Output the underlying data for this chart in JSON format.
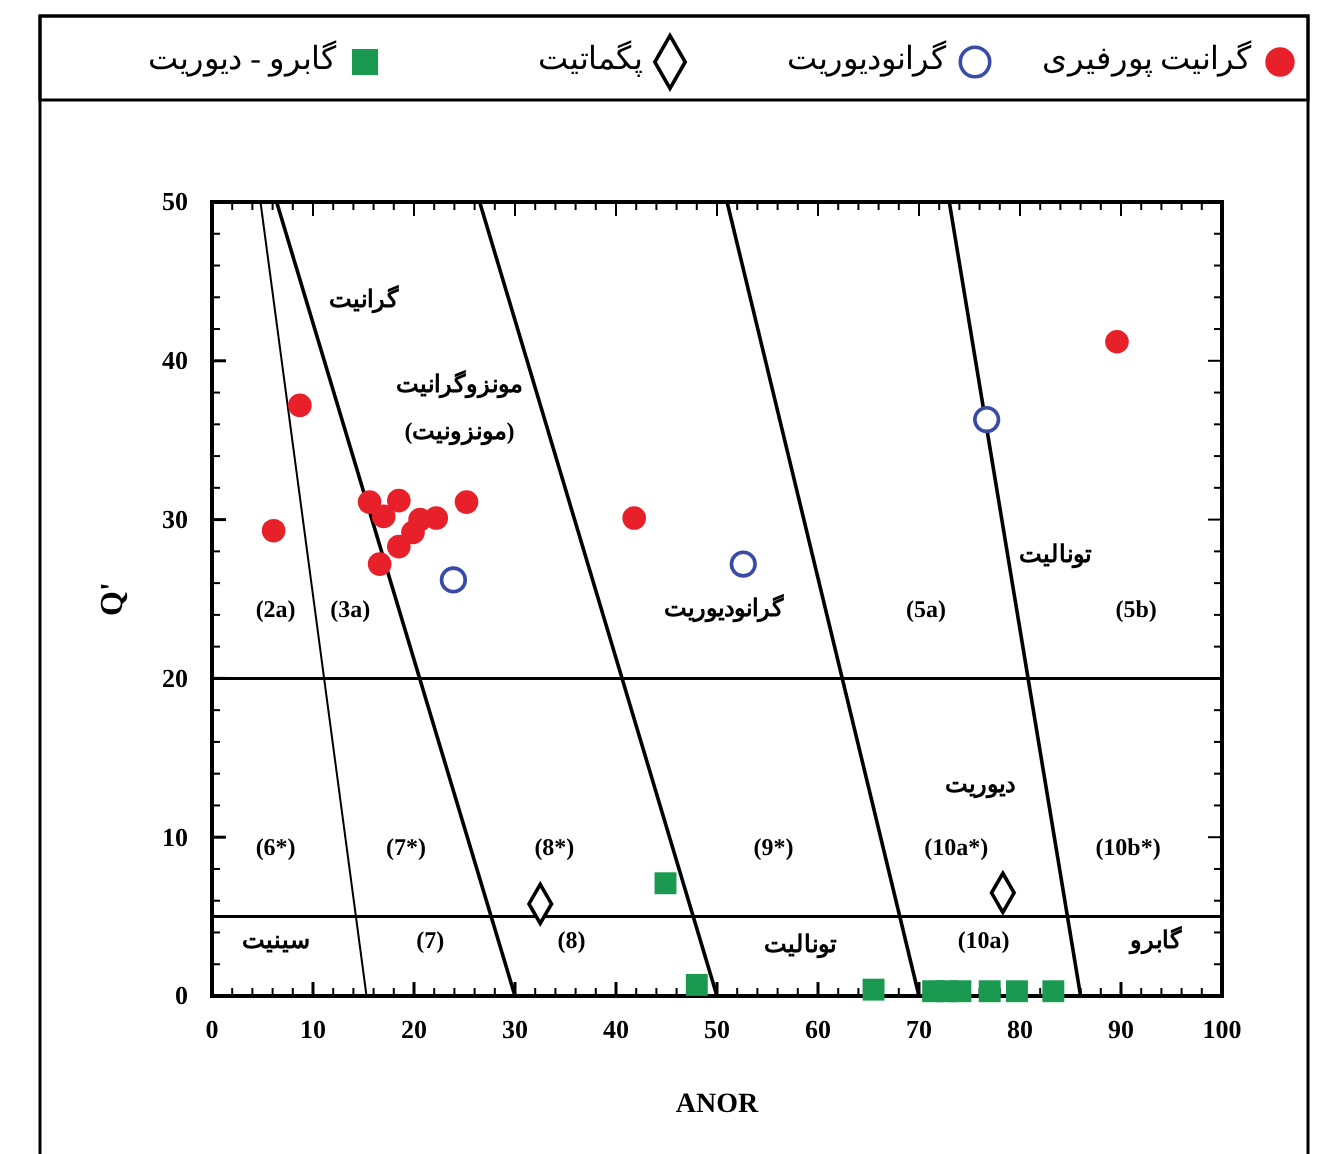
{
  "chart_data": {
    "type": "scatter",
    "xlabel": "ANOR",
    "ylabel": "Q'",
    "xlim": [
      0,
      100
    ],
    "ylim": [
      0,
      50
    ],
    "xticks": [
      0,
      10,
      20,
      30,
      40,
      50,
      60,
      70,
      80,
      90,
      100
    ],
    "yticks": [
      0,
      10,
      20,
      30,
      40,
      50
    ],
    "grid": false,
    "legend": "top",
    "series": [
      {
        "name": "گرانیت پورفیری",
        "color": "#e8202a",
        "marker": "circle",
        "x": [
          8.7,
          6.1,
          15.6,
          18.5,
          17.0,
          20.6,
          22.2,
          19.9,
          18.5,
          16.6,
          25.2,
          41.8,
          89.6
        ],
        "values": [
          37.2,
          29.3,
          31.1,
          31.2,
          30.2,
          30.0,
          30.1,
          29.2,
          28.3,
          27.2,
          31.1,
          30.1,
          41.2
        ]
      },
      {
        "name": "گرانودیوریت",
        "color": "#3a4aa8",
        "marker": "circle-open",
        "x": [
          23.9,
          52.6,
          76.7
        ],
        "values": [
          26.2,
          27.2,
          36.3
        ]
      },
      {
        "name": "پگماتیت",
        "color": "#000000",
        "marker": "diamond-open",
        "x": [
          32.5,
          78.3
        ],
        "values": [
          5.8,
          6.5
        ]
      },
      {
        "name": "گابرو - دیوریت",
        "color": "#1a9a50",
        "marker": "square",
        "x": [
          44.9,
          48.0,
          65.5,
          71.4,
          72.7,
          74.1,
          77.0,
          79.7,
          83.3
        ],
        "values": [
          7.1,
          0.7,
          0.4,
          0.3,
          0.3,
          0.3,
          0.3,
          0.3,
          0.3
        ]
      },
      {
        "type": "line",
        "color": "#000000",
        "marker": "none",
        "x": [
          4.8,
          15.3
        ],
        "values": [
          50,
          0
        ]
      },
      {
        "type": "line",
        "color": "#000000",
        "marker": "none",
        "x": [
          6.4,
          30
        ],
        "values": [
          50,
          0
        ]
      },
      {
        "type": "line",
        "color": "#000000",
        "marker": "none",
        "x": [
          26.5,
          50
        ],
        "values": [
          50,
          0
        ]
      },
      {
        "type": "line",
        "color": "#000000",
        "marker": "none",
        "x": [
          51,
          70
        ],
        "values": [
          50,
          0
        ]
      },
      {
        "type": "line",
        "color": "#000000",
        "marker": "none",
        "x": [
          73,
          86
        ],
        "values": [
          50,
          0
        ]
      }
    ],
    "ref_lines": [
      {
        "axis": "y",
        "value": 20
      },
      {
        "axis": "y",
        "value": 5
      }
    ],
    "annotations": [
      "گرانیت",
      "مونزوگرانیت",
      "(مونزونیت)",
      "(2a)",
      "(3a)",
      "گرانودیوریت",
      "(5a)",
      "تونالیت",
      "(5b)",
      "دیوریت",
      "(6*)",
      "(7*)",
      "(8*)",
      "(9*)",
      "(10a*)",
      "(10b*)",
      "سینیت",
      "(7)",
      "(8)",
      "تونالیت",
      "(10a)",
      "گابرو"
    ]
  }
}
